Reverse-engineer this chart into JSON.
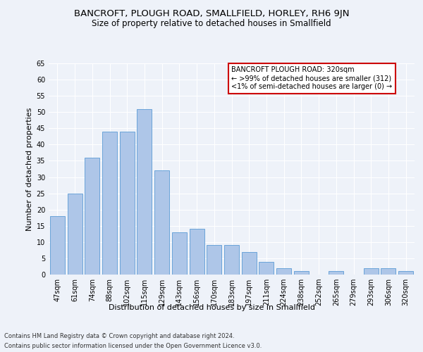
{
  "title": "BANCROFT, PLOUGH ROAD, SMALLFIELD, HORLEY, RH6 9JN",
  "subtitle": "Size of property relative to detached houses in Smallfield",
  "xlabel": "Distribution of detached houses by size in Smallfield",
  "ylabel": "Number of detached properties",
  "categories": [
    "47sqm",
    "61sqm",
    "74sqm",
    "88sqm",
    "102sqm",
    "115sqm",
    "129sqm",
    "143sqm",
    "156sqm",
    "170sqm",
    "183sqm",
    "197sqm",
    "211sqm",
    "224sqm",
    "238sqm",
    "252sqm",
    "265sqm",
    "279sqm",
    "293sqm",
    "306sqm",
    "320sqm"
  ],
  "values": [
    18,
    25,
    36,
    44,
    44,
    51,
    32,
    13,
    14,
    9,
    9,
    7,
    4,
    2,
    1,
    0,
    1,
    0,
    2,
    2,
    1
  ],
  "bar_color": "#aec6e8",
  "bar_edge_color": "#5b9bd5",
  "annotation_title": "BANCROFT PLOUGH ROAD: 320sqm",
  "annotation_line1": "← >99% of detached houses are smaller (312)",
  "annotation_line2": "<1% of semi-detached houses are larger (0) →",
  "annotation_box_color": "#ffffff",
  "annotation_box_edge": "#cc0000",
  "ylim": [
    0,
    65
  ],
  "yticks": [
    0,
    5,
    10,
    15,
    20,
    25,
    30,
    35,
    40,
    45,
    50,
    55,
    60,
    65
  ],
  "footer1": "Contains HM Land Registry data © Crown copyright and database right 2024.",
  "footer2": "Contains public sector information licensed under the Open Government Licence v3.0.",
  "background_color": "#eef2f9",
  "grid_color": "#ffffff",
  "title_fontsize": 9.5,
  "subtitle_fontsize": 8.5,
  "xlabel_fontsize": 8,
  "ylabel_fontsize": 8,
  "tick_fontsize": 7,
  "annotation_fontsize": 7,
  "footer_fontsize": 6
}
